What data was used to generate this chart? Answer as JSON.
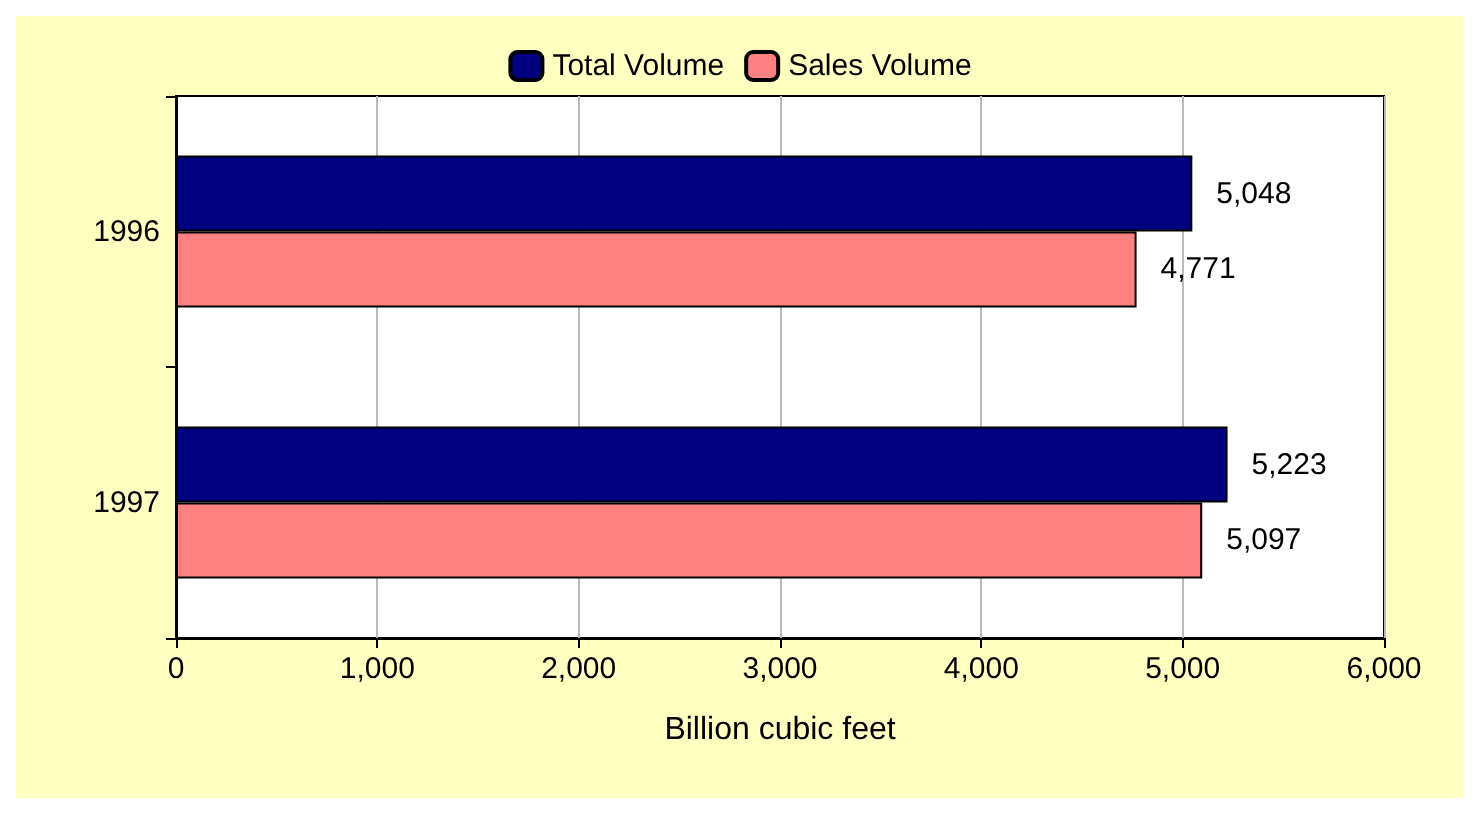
{
  "chart_data": {
    "type": "bar",
    "orientation": "horizontal",
    "xlabel": "Billion cubic feet",
    "categories": [
      "1996",
      "1997"
    ],
    "series": [
      {
        "name": "Total Volume",
        "color": "#000080",
        "values": [
          5048,
          5223
        ],
        "value_labels": [
          "5,048",
          "5,223"
        ]
      },
      {
        "name": "Sales Volume",
        "color": "#ff8080",
        "values": [
          4771,
          5097
        ],
        "value_labels": [
          "4,771",
          "5,097"
        ]
      }
    ],
    "xlim": [
      0,
      6000
    ],
    "xticks": [
      0,
      {
        "value": 1000,
        "label": "1,000"
      },
      {
        "value": 2000,
        "label": "2,000"
      },
      {
        "value": 3000,
        "label": "3,000"
      },
      {
        "value": 4000,
        "label": "4,000"
      },
      {
        "value": 5000,
        "label": "5,000"
      },
      {
        "value": 6000,
        "label": "6,000"
      }
    ],
    "grid": "x",
    "legend": "top"
  }
}
